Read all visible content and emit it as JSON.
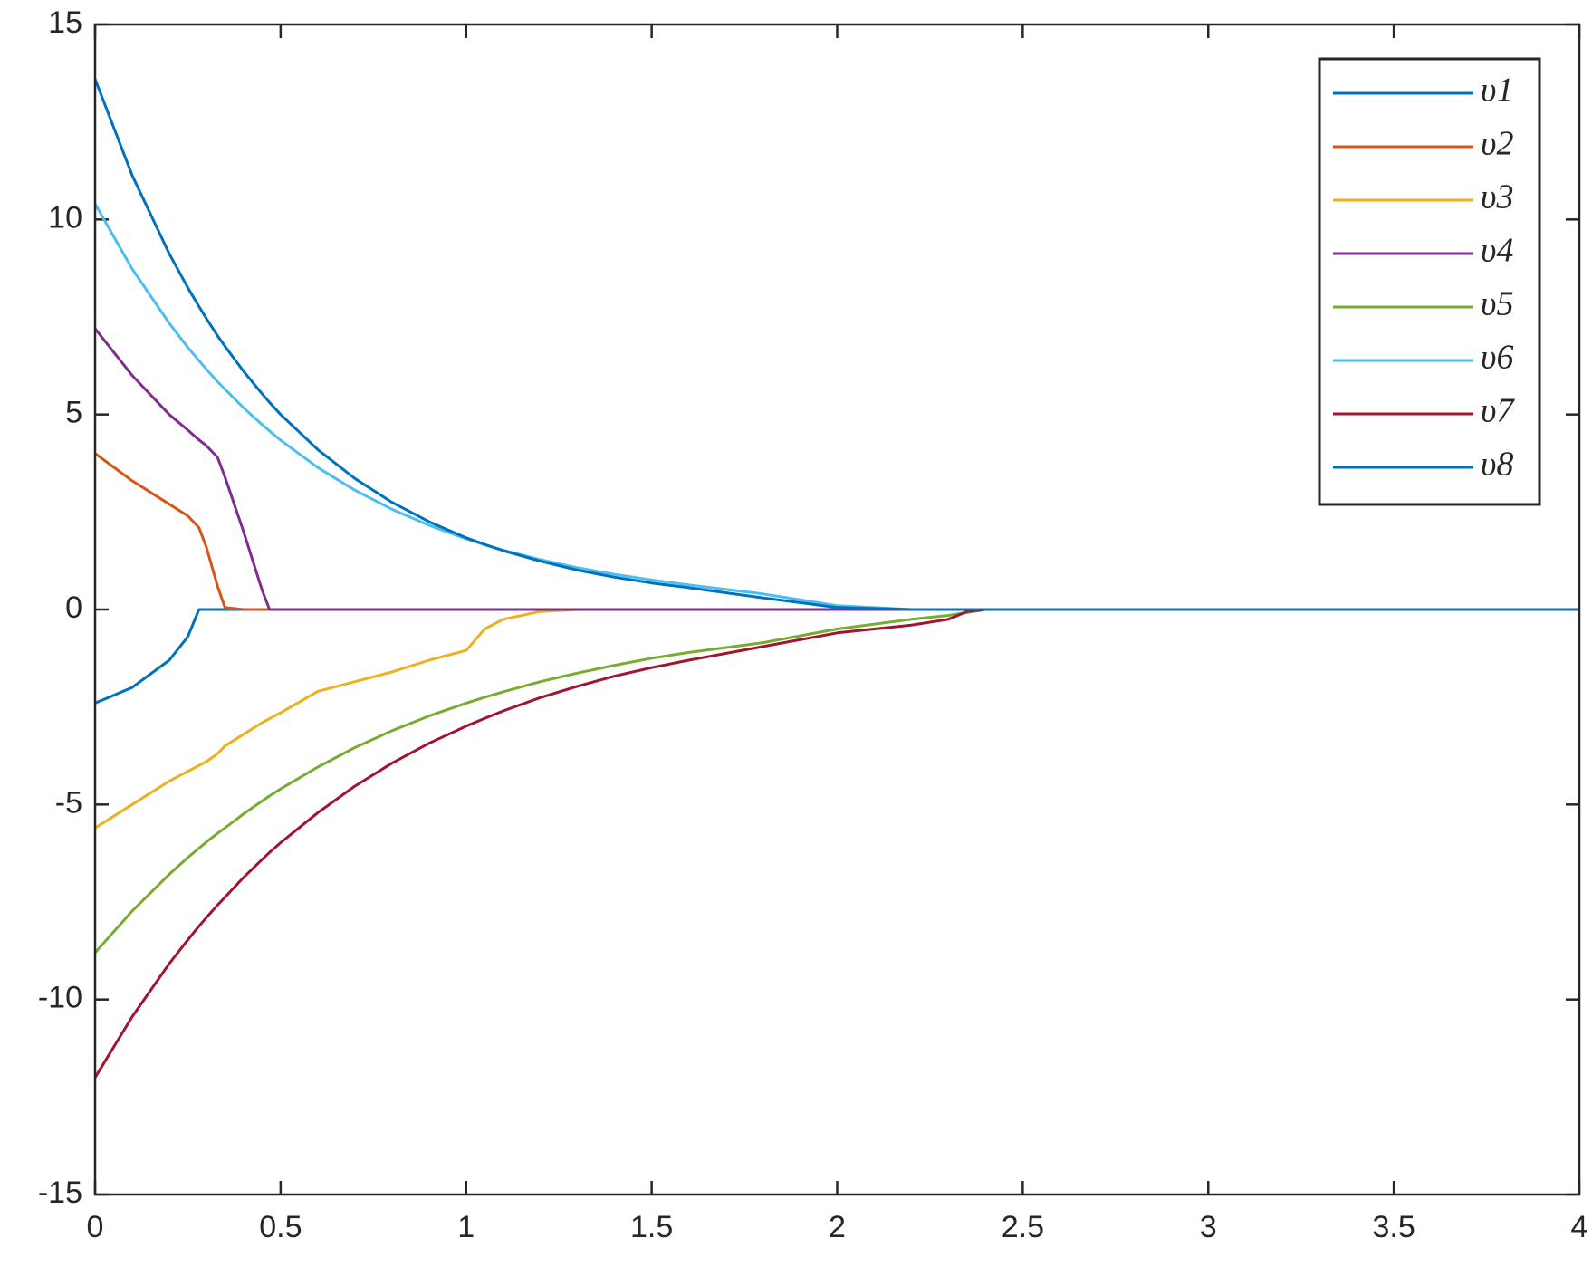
{
  "chart_data": {
    "type": "line",
    "x": [
      0,
      0.1,
      0.2,
      0.25,
      0.28,
      0.3,
      0.33,
      0.35,
      0.4,
      0.45,
      0.47,
      0.5,
      0.6,
      0.7,
      0.8,
      0.9,
      1.0,
      1.05,
      1.1,
      1.2,
      1.3,
      1.4,
      1.5,
      1.6,
      1.8,
      2.0,
      2.2,
      2.3,
      2.35,
      2.4,
      2.5,
      3.0,
      3.5,
      4.0
    ],
    "series": [
      {
        "name": "υ1",
        "color": "#0072BD",
        "values": [
          -2.4,
          -2.0,
          -1.3,
          -0.7,
          0,
          0,
          0,
          0,
          0,
          0,
          0,
          0,
          0,
          0,
          0,
          0,
          0,
          0,
          0,
          0,
          0,
          0,
          0,
          0,
          0,
          0,
          0,
          0,
          0,
          0,
          0,
          0,
          0,
          0
        ]
      },
      {
        "name": "υ2",
        "color": "#D95319",
        "values": [
          4.0,
          3.3,
          2.7,
          2.4,
          2.1,
          1.6,
          0.6,
          0.05,
          0,
          0,
          0,
          0,
          0,
          0,
          0,
          0,
          0,
          0,
          0,
          0,
          0,
          0,
          0,
          0,
          0,
          0,
          0,
          0,
          0,
          0,
          0,
          0,
          0,
          0
        ]
      },
      {
        "name": "υ3",
        "color": "#EDB120",
        "values": [
          -5.6,
          -5.0,
          -4.4,
          -4.15,
          -4.0,
          -3.9,
          -3.7,
          -3.5,
          -3.2,
          -2.9,
          -2.8,
          -2.65,
          -2.1,
          -1.85,
          -1.6,
          -1.3,
          -1.05,
          -0.5,
          -0.25,
          -0.05,
          0,
          0,
          0,
          0,
          0,
          0,
          0,
          0,
          0,
          0,
          0,
          0,
          0,
          0
        ]
      },
      {
        "name": "υ4",
        "color": "#7E2F8E",
        "values": [
          7.2,
          6.0,
          5.0,
          4.6,
          4.35,
          4.2,
          3.9,
          3.4,
          2.0,
          0.5,
          0,
          0,
          0,
          0,
          0,
          0,
          0,
          0,
          0,
          0,
          0,
          0,
          0,
          0,
          0,
          0,
          0,
          0,
          0,
          0,
          0,
          0,
          0,
          0
        ]
      },
      {
        "name": "υ5",
        "color": "#77AC30",
        "values": [
          -8.8,
          -7.73,
          -6.79,
          -6.36,
          -6.12,
          -5.96,
          -5.74,
          -5.6,
          -5.24,
          -4.91,
          -4.78,
          -4.6,
          -4.04,
          -3.54,
          -3.11,
          -2.73,
          -2.4,
          -2.25,
          -2.11,
          -1.85,
          -1.63,
          -1.43,
          -1.25,
          -1.1,
          -0.85,
          -0.5,
          -0.25,
          -0.15,
          -0.08,
          0,
          0,
          0,
          0,
          0
        ]
      },
      {
        "name": "υ6",
        "color": "#4DBEEE",
        "values": [
          10.4,
          8.73,
          7.34,
          6.72,
          6.38,
          6.16,
          5.84,
          5.65,
          5.17,
          4.74,
          4.58,
          4.34,
          3.64,
          3.06,
          2.57,
          2.16,
          1.81,
          1.66,
          1.52,
          1.28,
          1.07,
          0.9,
          0.76,
          0.63,
          0.4,
          0.1,
          0,
          0,
          0,
          0,
          0,
          0,
          0,
          0
        ]
      },
      {
        "name": "υ7",
        "color": "#A2142F",
        "values": [
          -12.0,
          -10.44,
          -9.08,
          -8.47,
          -8.12,
          -7.9,
          -7.58,
          -7.38,
          -6.87,
          -6.41,
          -6.23,
          -5.98,
          -5.21,
          -4.53,
          -3.94,
          -3.43,
          -2.99,
          -2.79,
          -2.6,
          -2.26,
          -1.97,
          -1.71,
          -1.49,
          -1.3,
          -0.95,
          -0.6,
          -0.4,
          -0.25,
          -0.05,
          0,
          0,
          0,
          0,
          0
        ]
      },
      {
        "name": "υ8",
        "color": "#0072BD",
        "values": [
          13.6,
          11.13,
          9.12,
          8.25,
          7.77,
          7.46,
          7.02,
          6.75,
          6.11,
          5.53,
          5.31,
          5.0,
          4.1,
          3.36,
          2.75,
          2.25,
          1.84,
          1.67,
          1.51,
          1.24,
          1.01,
          0.83,
          0.68,
          0.56,
          0.3,
          0.05,
          0,
          0,
          0,
          0,
          0,
          0,
          0,
          0
        ]
      }
    ],
    "xlim": [
      0,
      4
    ],
    "xticks": [
      0,
      0.5,
      1,
      1.5,
      2,
      2.5,
      3,
      3.5,
      4
    ],
    "ylim": [
      -15,
      15
    ],
    "yticks": [
      -15,
      -10,
      -5,
      0,
      5,
      10,
      15
    ],
    "grid": false,
    "legend": "top-right"
  }
}
